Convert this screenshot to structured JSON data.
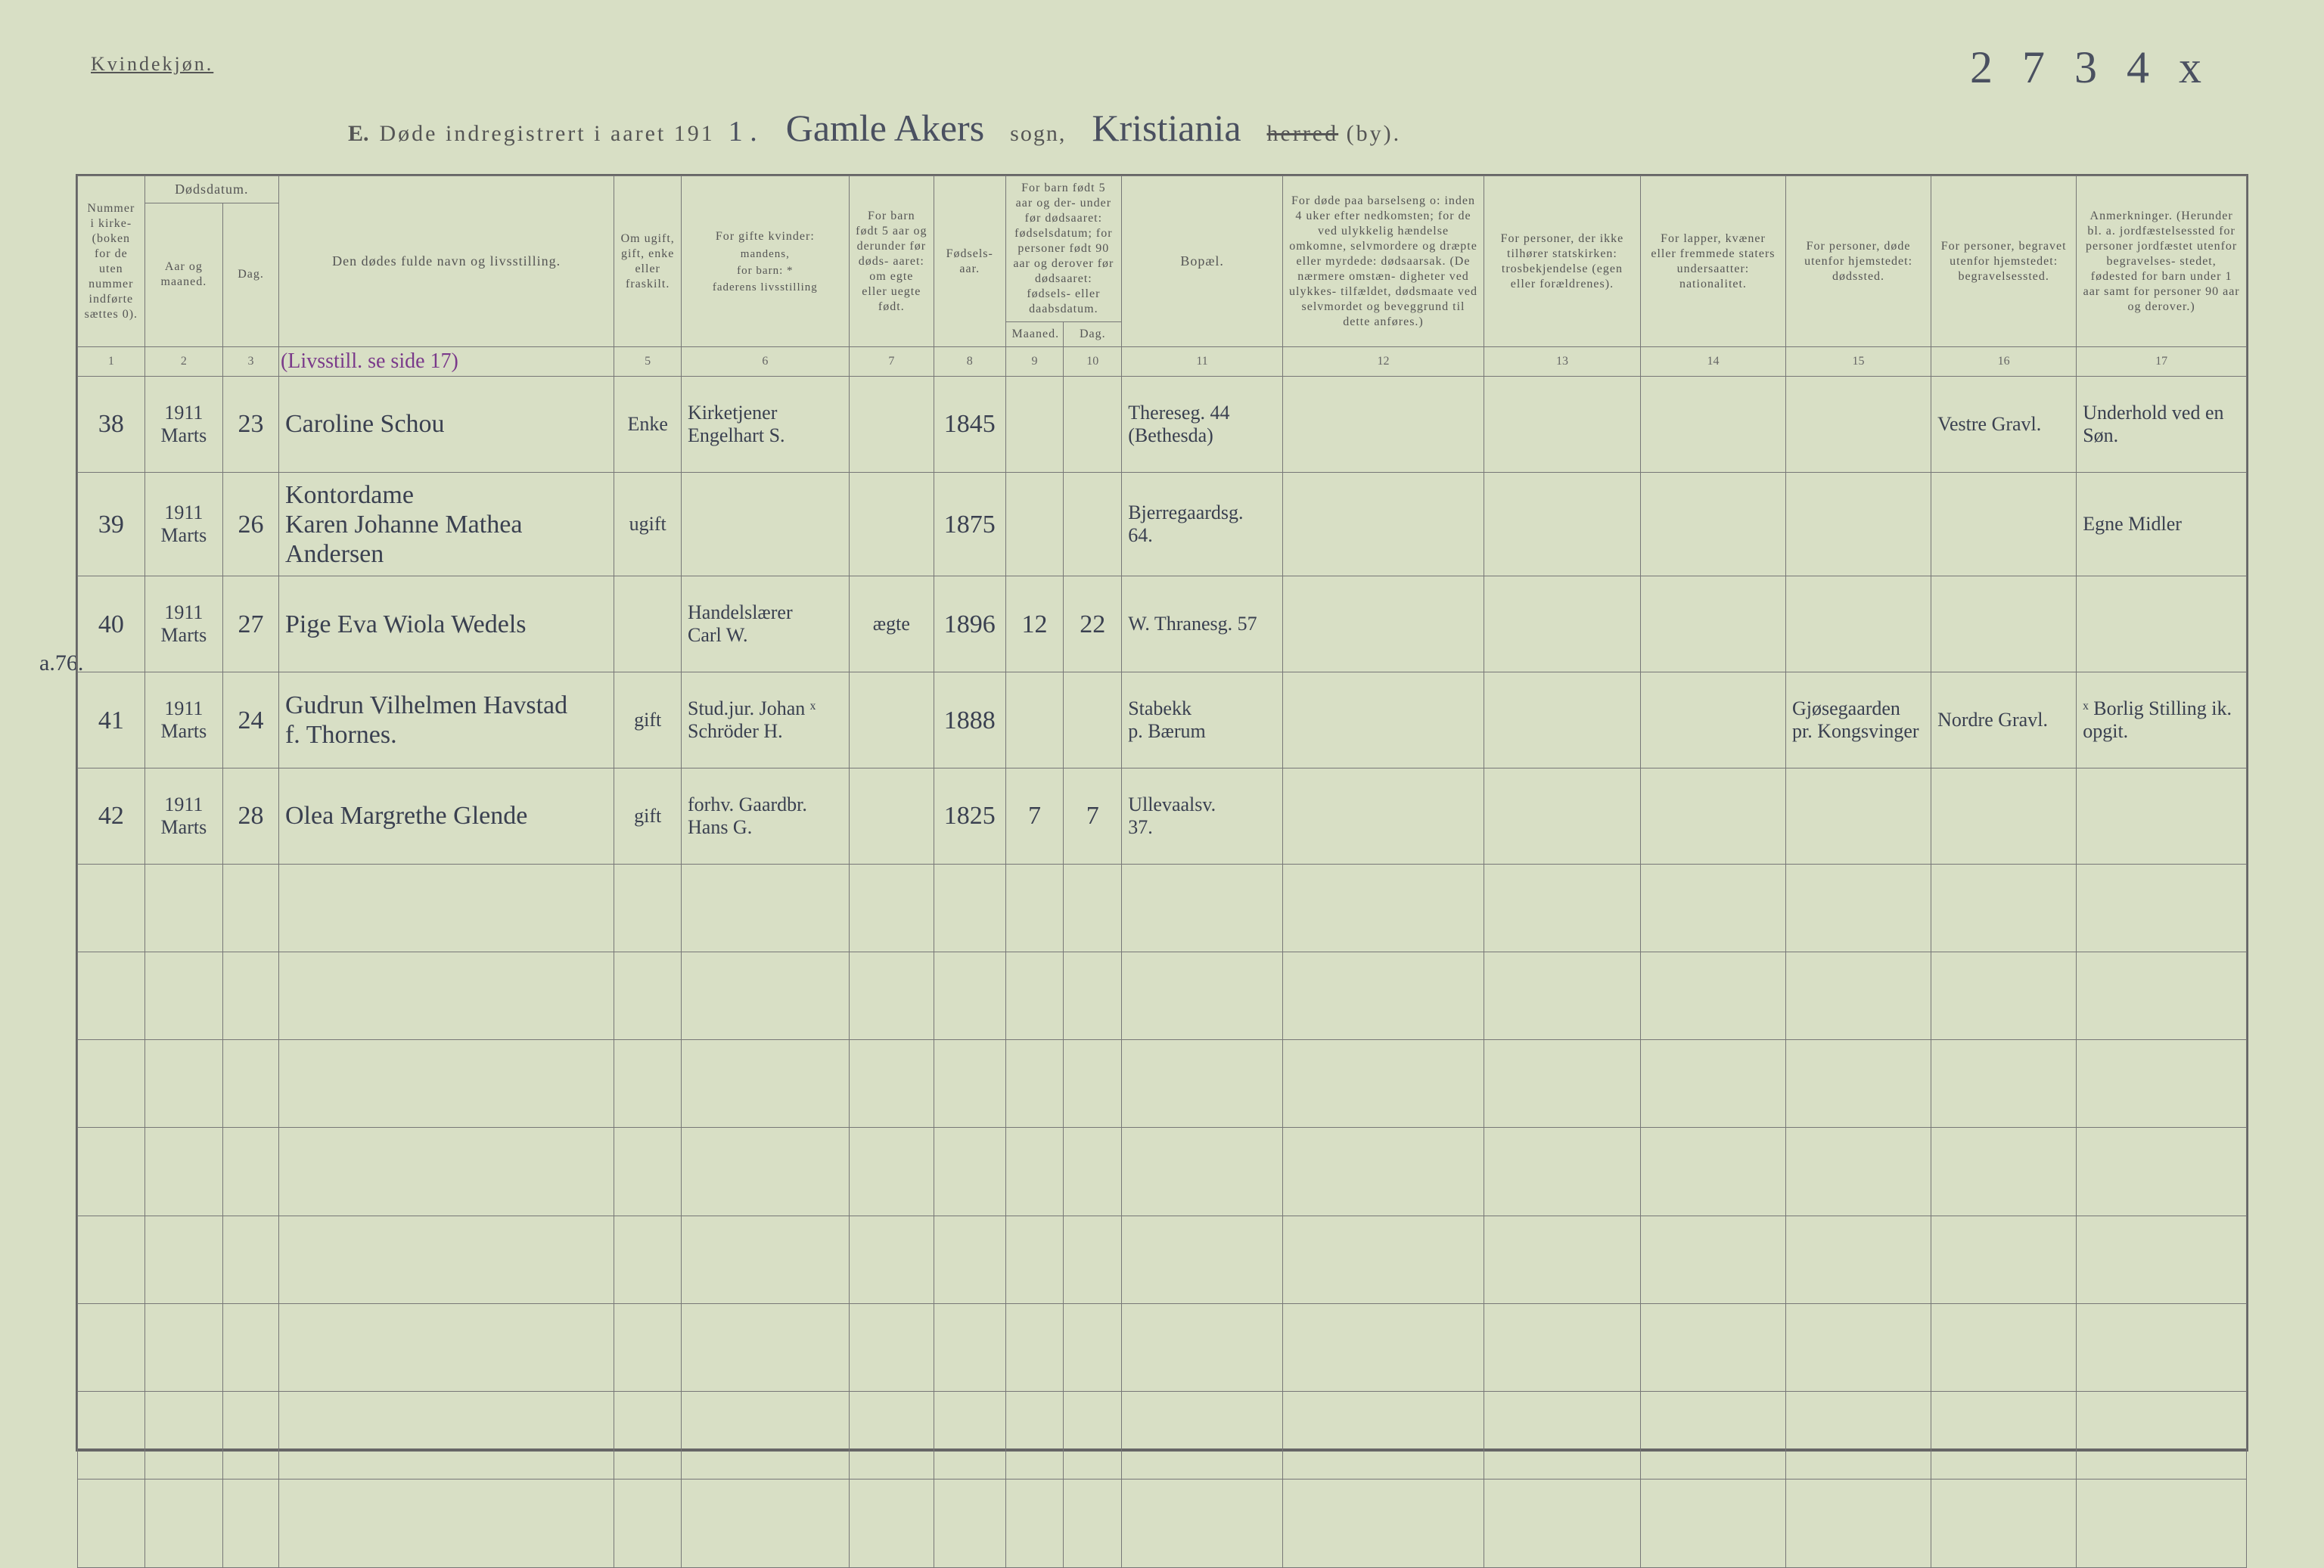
{
  "header": {
    "gender": "Kvindekjøn.",
    "page_number_handwritten": "2 7 3 4 x",
    "prefix": "E.",
    "title_printed": "Døde indregistrert i aaret 191",
    "year_suffix_hand": "1 .",
    "sogn_hand": "Gamle Akers",
    "sogn_label": "sogn,",
    "herred_hand": "Kristiania",
    "herred_strike": "herred",
    "by_label": "(by)."
  },
  "margin_note": "a.76.",
  "columns": {
    "c1": "Nummer i kirke- (boken for de uten nummer indførte sættes 0).",
    "c2_group": "Dødsdatum.",
    "c2": "Aar og maaned.",
    "c3": "Dag.",
    "c4": "Den dødes fulde navn og livsstilling.",
    "c5": "Om ugift, gift, enke eller fraskilt.",
    "c6_top": "For gifte kvinder:",
    "c6_mid": "mandens,",
    "c6_mid2": "for barn: *",
    "c6_bot": "faderens livsstilling",
    "c7": "For barn født 5 aar og derunder før døds- aaret: om egte eller uegte født.",
    "c8": "Fødsels- aar.",
    "c9_10_top": "For barn født 5 aar og der- under før dødsaaret: fødselsdatum; for personer født 90 aar og derover før dødsaaret: fødsels- eller daabsdatum.",
    "c9": "Maaned.",
    "c10": "Dag.",
    "c11": "Bopæl.",
    "c12": "For døde paa barselseng o: inden 4 uker efter nedkomsten; for de ved ulykkelig hændelse omkomne, selvmordere og dræpte eller myrdede: dødsaarsak. (De nærmere omstæn- digheter ved ulykkes- tilfældet, dødsmaate ved selvmordet og beveggrund til dette anføres.)",
    "c13": "For personer, der ikke tilhører statskirken: trosbekjendelse (egen eller forældrenes).",
    "c14": "For lapper, kvæner eller fremmede staters undersaatter: nationalitet.",
    "c15": "For personer, døde utenfor hjemstedet: dødssted.",
    "c16": "For personer, begravet utenfor hjemstedet: begravelsessted.",
    "c17": "Anmerkninger. (Herunder bl. a. jordfæstelsessted for personer jordfæstet utenfor begravelses- stedet, fødested for barn under 1 aar samt for personer 90 aar og derover.)"
  },
  "colnums": [
    "1",
    "2",
    "3",
    "",
    "5",
    "6",
    "7",
    "8",
    "9",
    "10",
    "11",
    "12",
    "13",
    "14",
    "15",
    "16",
    "17"
  ],
  "row1_topnote": "(Livsstill. se side 17)",
  "rows": [
    {
      "num": "38",
      "aar": "1911\nMarts",
      "dag": "23",
      "navn": "Caroline Schou",
      "stand": "Enke",
      "mand": "Kirketjener\nEngelhart S.",
      "egte": "",
      "faar": "1845",
      "fm": "",
      "fd": "",
      "bopael": "Thereseg. 44\n(Bethesda)",
      "c12": "",
      "c13": "",
      "c14": "",
      "c15": "",
      "c16": "Vestre Gravl.",
      "c17": "Underhold ved en Søn."
    },
    {
      "num": "39",
      "aar": "1911\nMarts",
      "dag": "26",
      "navn": "Kontordame\nKaren Johanne Mathea Andersen",
      "stand": "ugift",
      "mand": "",
      "egte": "",
      "faar": "1875",
      "fm": "",
      "fd": "",
      "bopael": "Bjerregaardsg.\n64.",
      "c12": "",
      "c13": "",
      "c14": "",
      "c15": "",
      "c16": "",
      "c17": "Egne Midler"
    },
    {
      "num": "40",
      "aar": "1911\nMarts",
      "dag": "27",
      "navn": "Pige Eva Wiola Wedels",
      "stand": "",
      "mand": "Handelslærer\nCarl W.",
      "egte": "ægte",
      "faar": "1896",
      "fm": "12",
      "fd": "22",
      "bopael": "W. Thranesg. 57",
      "c12": "",
      "c13": "",
      "c14": "",
      "c15": "",
      "c16": "",
      "c17": ""
    },
    {
      "num": "41",
      "aar": "1911\nMarts",
      "dag": "24",
      "navn": "Gudrun Vilhelmen Havstad\nf. Thornes.",
      "stand": "gift",
      "mand": "Stud.jur. Johan ˣ\nSchröder H.",
      "egte": "",
      "faar": "1888",
      "fm": "",
      "fd": "",
      "bopael": "Stabekk\np. Bærum",
      "c12": "",
      "c13": "",
      "c14": "",
      "c15": "Gjøsegaarden\npr. Kongsvinger",
      "c16": "Nordre Gravl.",
      "c17": "ˣ Borlig Stilling ik. opgit."
    },
    {
      "num": "42",
      "aar": "1911\nMarts",
      "dag": "28",
      "navn": "Olea Margrethe Glende",
      "stand": "gift",
      "mand": "forhv. Gaardbr.\nHans G.",
      "egte": "",
      "faar": "1825",
      "fm": "7",
      "fd": "7",
      "bopael": "Ullevaalsv.\n37.",
      "c12": "",
      "c13": "",
      "c14": "",
      "c15": "",
      "c16": "",
      "c17": ""
    }
  ],
  "empty_rows": 8
}
